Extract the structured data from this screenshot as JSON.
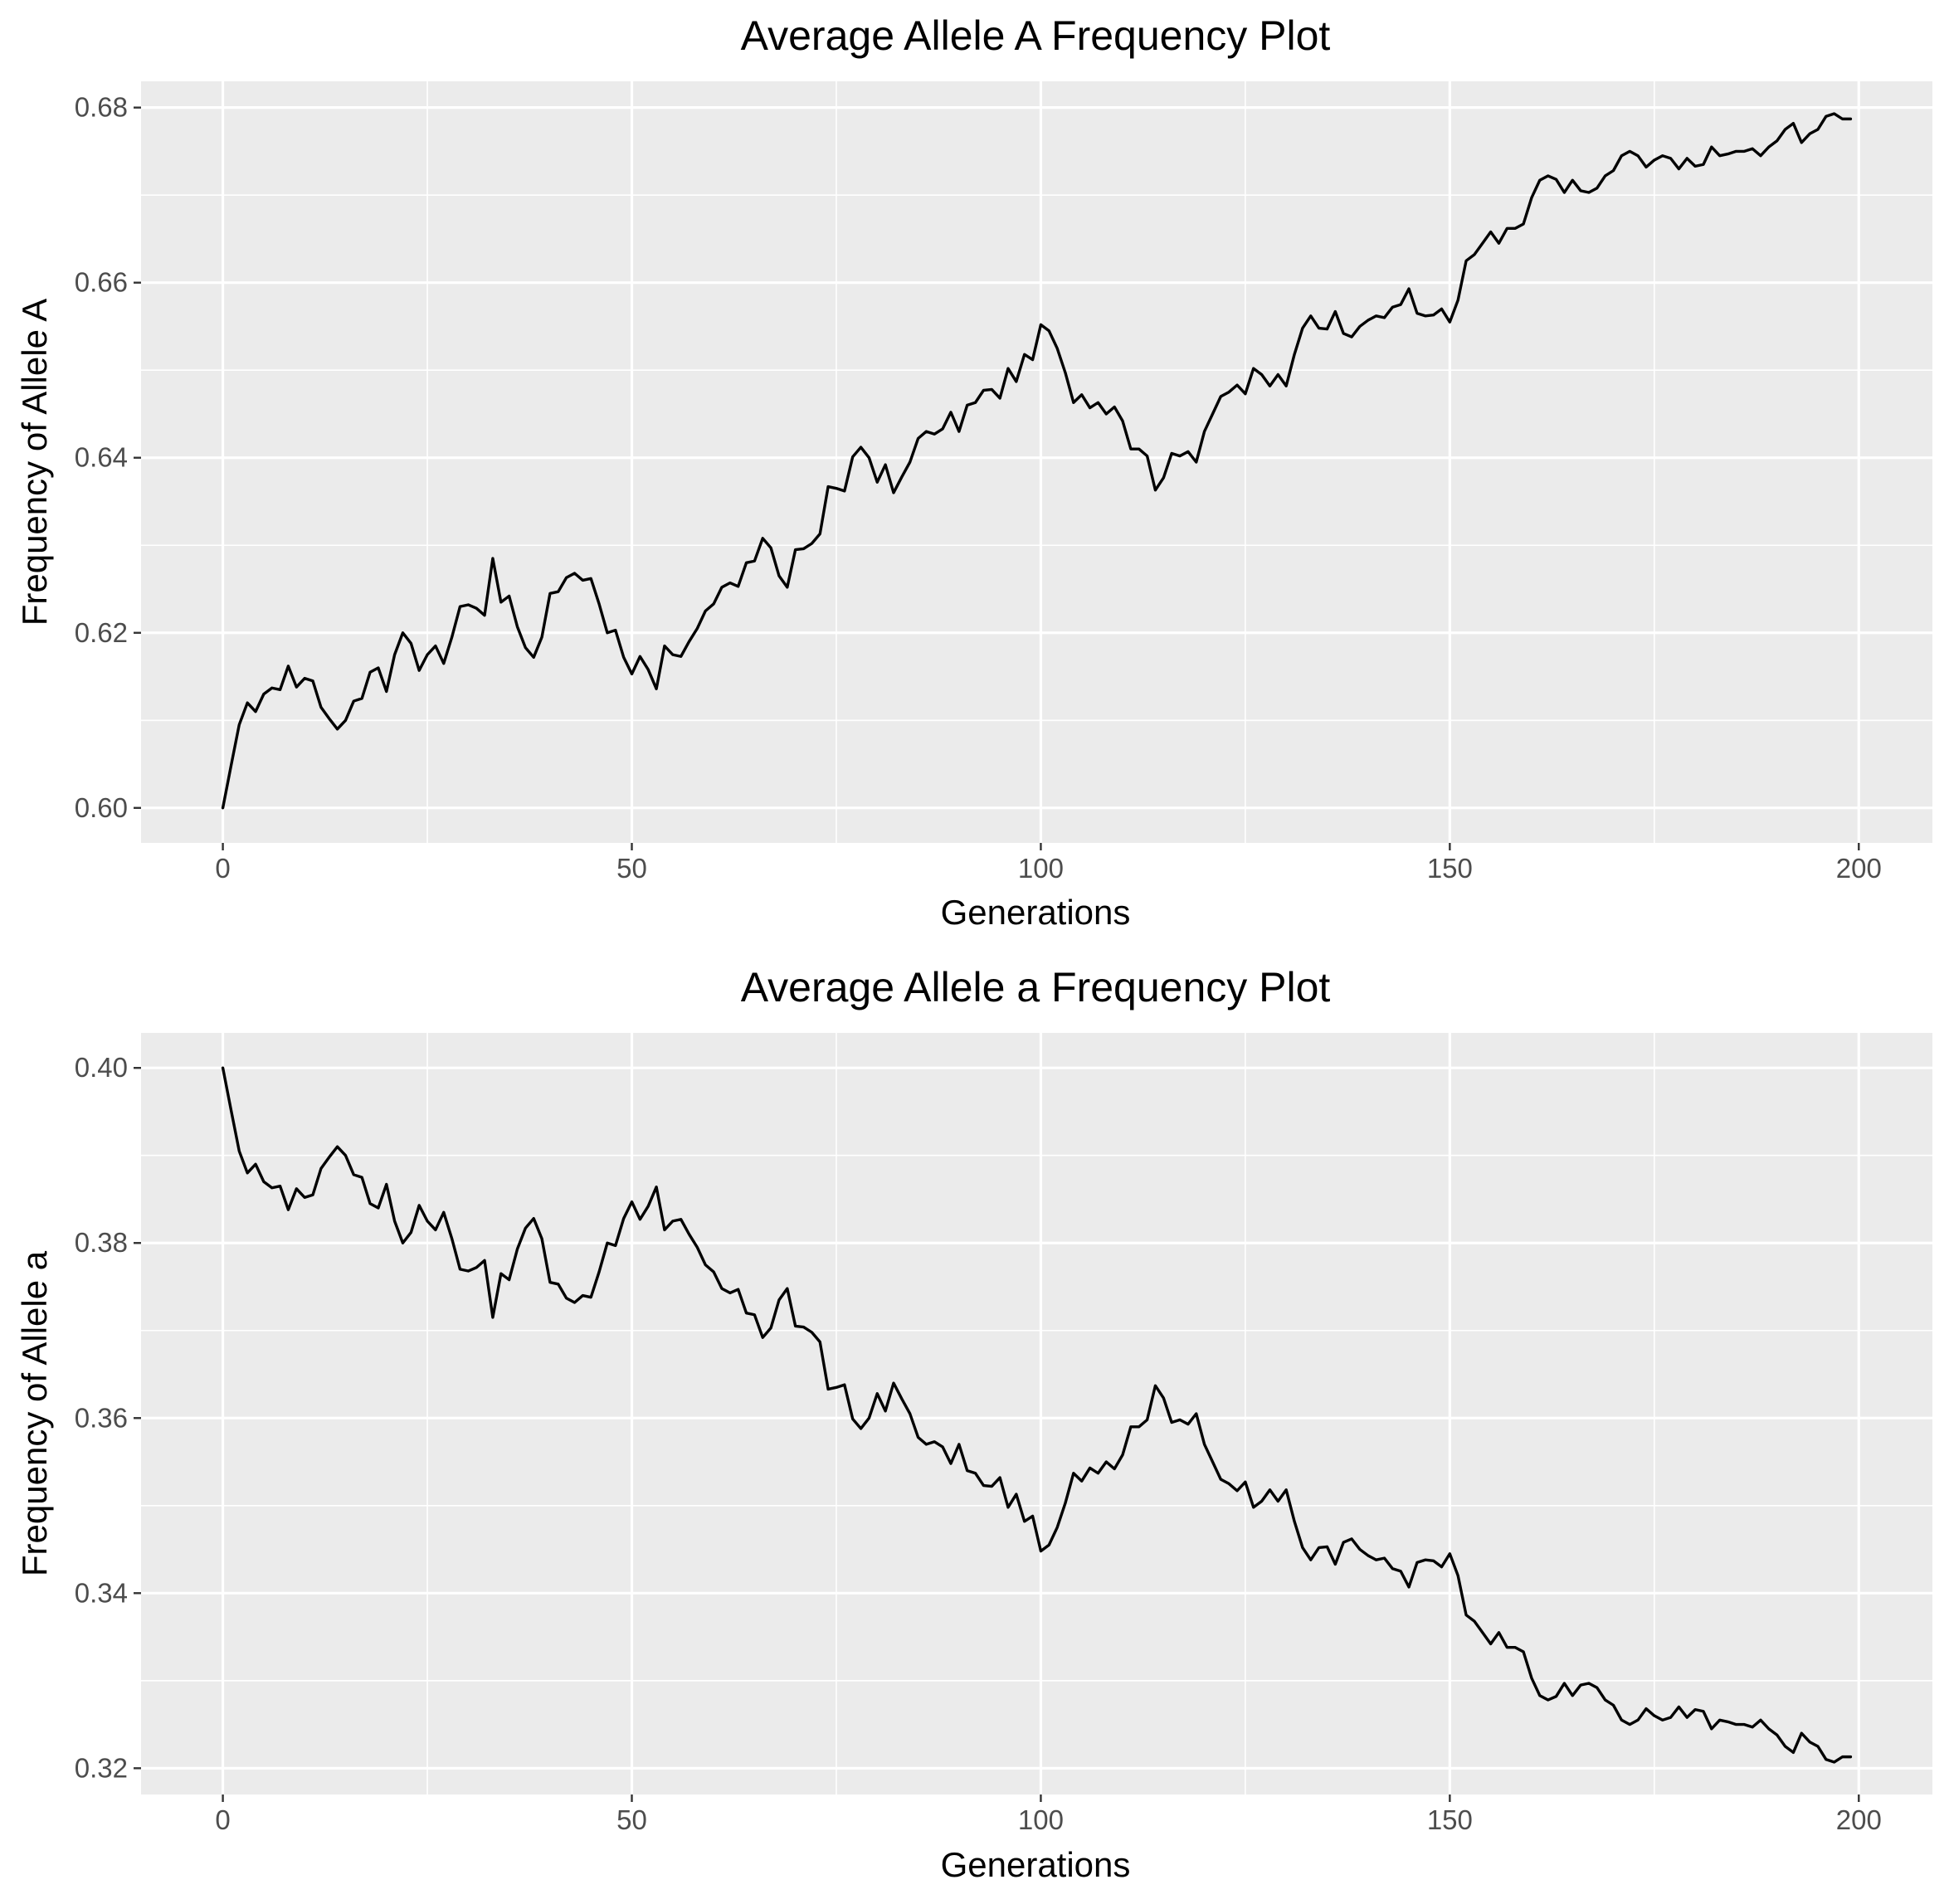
{
  "chart_data": [
    {
      "type": "line",
      "title": "Average Allele A Frequency Plot",
      "xlabel": "Generations",
      "ylabel": "Frequency of Allele A",
      "xlim": [
        -10,
        209
      ],
      "ylim": [
        0.596,
        0.683
      ],
      "x_ticks": [
        0,
        50,
        100,
        150,
        200
      ],
      "x_tick_labels": [
        "0",
        "50",
        "100",
        "150",
        "200"
      ],
      "y_ticks": [
        0.6,
        0.62,
        0.64,
        0.66,
        0.68
      ],
      "y_tick_labels": [
        "0.60",
        "0.62",
        "0.64",
        "0.66",
        "0.68"
      ],
      "grid": true,
      "series": [
        {
          "color": "#000000",
          "x_start": 0,
          "x_step": 1,
          "values": [
            0.6,
            0.6048,
            0.6095,
            0.612,
            0.611,
            0.613,
            0.6137,
            0.6135,
            0.6162,
            0.6138,
            0.6148,
            0.6145,
            0.6115,
            0.6102,
            0.609,
            0.61,
            0.6122,
            0.6125,
            0.6155,
            0.616,
            0.6133,
            0.6175,
            0.62,
            0.6188,
            0.6157,
            0.6175,
            0.6185,
            0.6165,
            0.6195,
            0.623,
            0.6232,
            0.6228,
            0.622,
            0.6285,
            0.6235,
            0.6242,
            0.6207,
            0.6183,
            0.6172,
            0.6195,
            0.6245,
            0.6247,
            0.6263,
            0.6268,
            0.626,
            0.6262,
            0.6233,
            0.62,
            0.6203,
            0.6172,
            0.6153,
            0.6173,
            0.6158,
            0.6136,
            0.6185,
            0.6175,
            0.6173,
            0.619,
            0.6205,
            0.6225,
            0.6233,
            0.6252,
            0.6257,
            0.6253,
            0.628,
            0.6282,
            0.6308,
            0.6297,
            0.6265,
            0.6252,
            0.6295,
            0.6296,
            0.6302,
            0.6313,
            0.6367,
            0.6365,
            0.6362,
            0.6401,
            0.6412,
            0.64,
            0.6372,
            0.6392,
            0.636,
            0.6378,
            0.6395,
            0.6422,
            0.643,
            0.6427,
            0.6433,
            0.6452,
            0.643,
            0.646,
            0.6463,
            0.6477,
            0.6478,
            0.6468,
            0.6502,
            0.6487,
            0.6518,
            0.6512,
            0.6552,
            0.6545,
            0.6525,
            0.6497,
            0.6463,
            0.6472,
            0.6457,
            0.6463,
            0.645,
            0.6458,
            0.6442,
            0.641,
            0.641,
            0.6402,
            0.6363,
            0.6377,
            0.6405,
            0.6402,
            0.6407,
            0.6395,
            0.643,
            0.645,
            0.647,
            0.6475,
            0.6483,
            0.6473,
            0.6502,
            0.6495,
            0.6482,
            0.6495,
            0.6482,
            0.6518,
            0.6548,
            0.6562,
            0.6548,
            0.6547,
            0.6567,
            0.6542,
            0.6538,
            0.655,
            0.6557,
            0.6562,
            0.656,
            0.6572,
            0.6575,
            0.6593,
            0.6565,
            0.6562,
            0.6563,
            0.657,
            0.6555,
            0.658,
            0.6625,
            0.6632,
            0.6645,
            0.6658,
            0.6645,
            0.6662,
            0.6662,
            0.6667,
            0.6697,
            0.6717,
            0.6722,
            0.6718,
            0.6703,
            0.6717,
            0.6705,
            0.6703,
            0.6708,
            0.6722,
            0.6728,
            0.6745,
            0.675,
            0.6745,
            0.6732,
            0.674,
            0.6745,
            0.6742,
            0.673,
            0.6742,
            0.6733,
            0.6735,
            0.6755,
            0.6745,
            0.6747,
            0.675,
            0.675,
            0.6753,
            0.6745,
            0.6755,
            0.6762,
            0.6775,
            0.6782,
            0.676,
            0.677,
            0.6775,
            0.679,
            0.6793,
            0.6787,
            0.6787
          ]
        }
      ]
    },
    {
      "type": "line",
      "title": "Average Allele a Frequency Plot",
      "xlabel": "Generations",
      "ylabel": "Frequency of Allele a",
      "xlim": [
        -10,
        209
      ],
      "ylim": [
        0.317,
        0.404
      ],
      "x_ticks": [
        0,
        50,
        100,
        150,
        200
      ],
      "x_tick_labels": [
        "0",
        "50",
        "100",
        "150",
        "200"
      ],
      "y_ticks": [
        0.32,
        0.34,
        0.36,
        0.38,
        0.4
      ],
      "y_tick_labels": [
        "0.32",
        "0.34",
        "0.36",
        "0.38",
        "0.40"
      ],
      "grid": true,
      "series": [
        {
          "color": "#000000",
          "x_start": 0,
          "x_step": 1,
          "values": [
            0.4,
            0.3952,
            0.3905,
            0.388,
            0.389,
            0.387,
            0.3863,
            0.3865,
            0.3838,
            0.3862,
            0.3852,
            0.3855,
            0.3885,
            0.3898,
            0.391,
            0.39,
            0.3878,
            0.3875,
            0.3845,
            0.384,
            0.3867,
            0.3825,
            0.38,
            0.3812,
            0.3843,
            0.3825,
            0.3815,
            0.3835,
            0.3805,
            0.377,
            0.3768,
            0.3772,
            0.378,
            0.3715,
            0.3765,
            0.3758,
            0.3793,
            0.3817,
            0.3828,
            0.3805,
            0.3755,
            0.3753,
            0.3737,
            0.3732,
            0.374,
            0.3738,
            0.3767,
            0.38,
            0.3797,
            0.3828,
            0.3847,
            0.3827,
            0.3842,
            0.3864,
            0.3815,
            0.3825,
            0.3827,
            0.381,
            0.3795,
            0.3775,
            0.3767,
            0.3748,
            0.3743,
            0.3747,
            0.372,
            0.3718,
            0.3692,
            0.3703,
            0.3735,
            0.3748,
            0.3705,
            0.3704,
            0.3698,
            0.3687,
            0.3633,
            0.3635,
            0.3638,
            0.3599,
            0.3588,
            0.36,
            0.3628,
            0.3608,
            0.364,
            0.3622,
            0.3605,
            0.3578,
            0.357,
            0.3573,
            0.3567,
            0.3548,
            0.357,
            0.354,
            0.3537,
            0.3523,
            0.3522,
            0.3532,
            0.3498,
            0.3513,
            0.3482,
            0.3488,
            0.3448,
            0.3455,
            0.3475,
            0.3503,
            0.3537,
            0.3528,
            0.3543,
            0.3537,
            0.355,
            0.3542,
            0.3558,
            0.359,
            0.359,
            0.3598,
            0.3637,
            0.3623,
            0.3595,
            0.3598,
            0.3593,
            0.3605,
            0.357,
            0.355,
            0.353,
            0.3525,
            0.3517,
            0.3527,
            0.3498,
            0.3505,
            0.3518,
            0.3505,
            0.3518,
            0.3482,
            0.3452,
            0.3438,
            0.3452,
            0.3453,
            0.3433,
            0.3458,
            0.3462,
            0.345,
            0.3443,
            0.3438,
            0.344,
            0.3428,
            0.3425,
            0.3407,
            0.3435,
            0.3438,
            0.3437,
            0.343,
            0.3445,
            0.342,
            0.3375,
            0.3368,
            0.3355,
            0.3342,
            0.3355,
            0.3338,
            0.3338,
            0.3333,
            0.3303,
            0.3283,
            0.3278,
            0.3282,
            0.3297,
            0.3283,
            0.3295,
            0.3297,
            0.3292,
            0.3278,
            0.3272,
            0.3255,
            0.325,
            0.3255,
            0.3268,
            0.326,
            0.3255,
            0.3258,
            0.327,
            0.3258,
            0.3267,
            0.3265,
            0.3245,
            0.3255,
            0.3253,
            0.325,
            0.325,
            0.3247,
            0.3255,
            0.3245,
            0.3238,
            0.3225,
            0.3218,
            0.324,
            0.323,
            0.3225,
            0.321,
            0.3207,
            0.3213,
            0.3213
          ]
        }
      ]
    }
  ]
}
